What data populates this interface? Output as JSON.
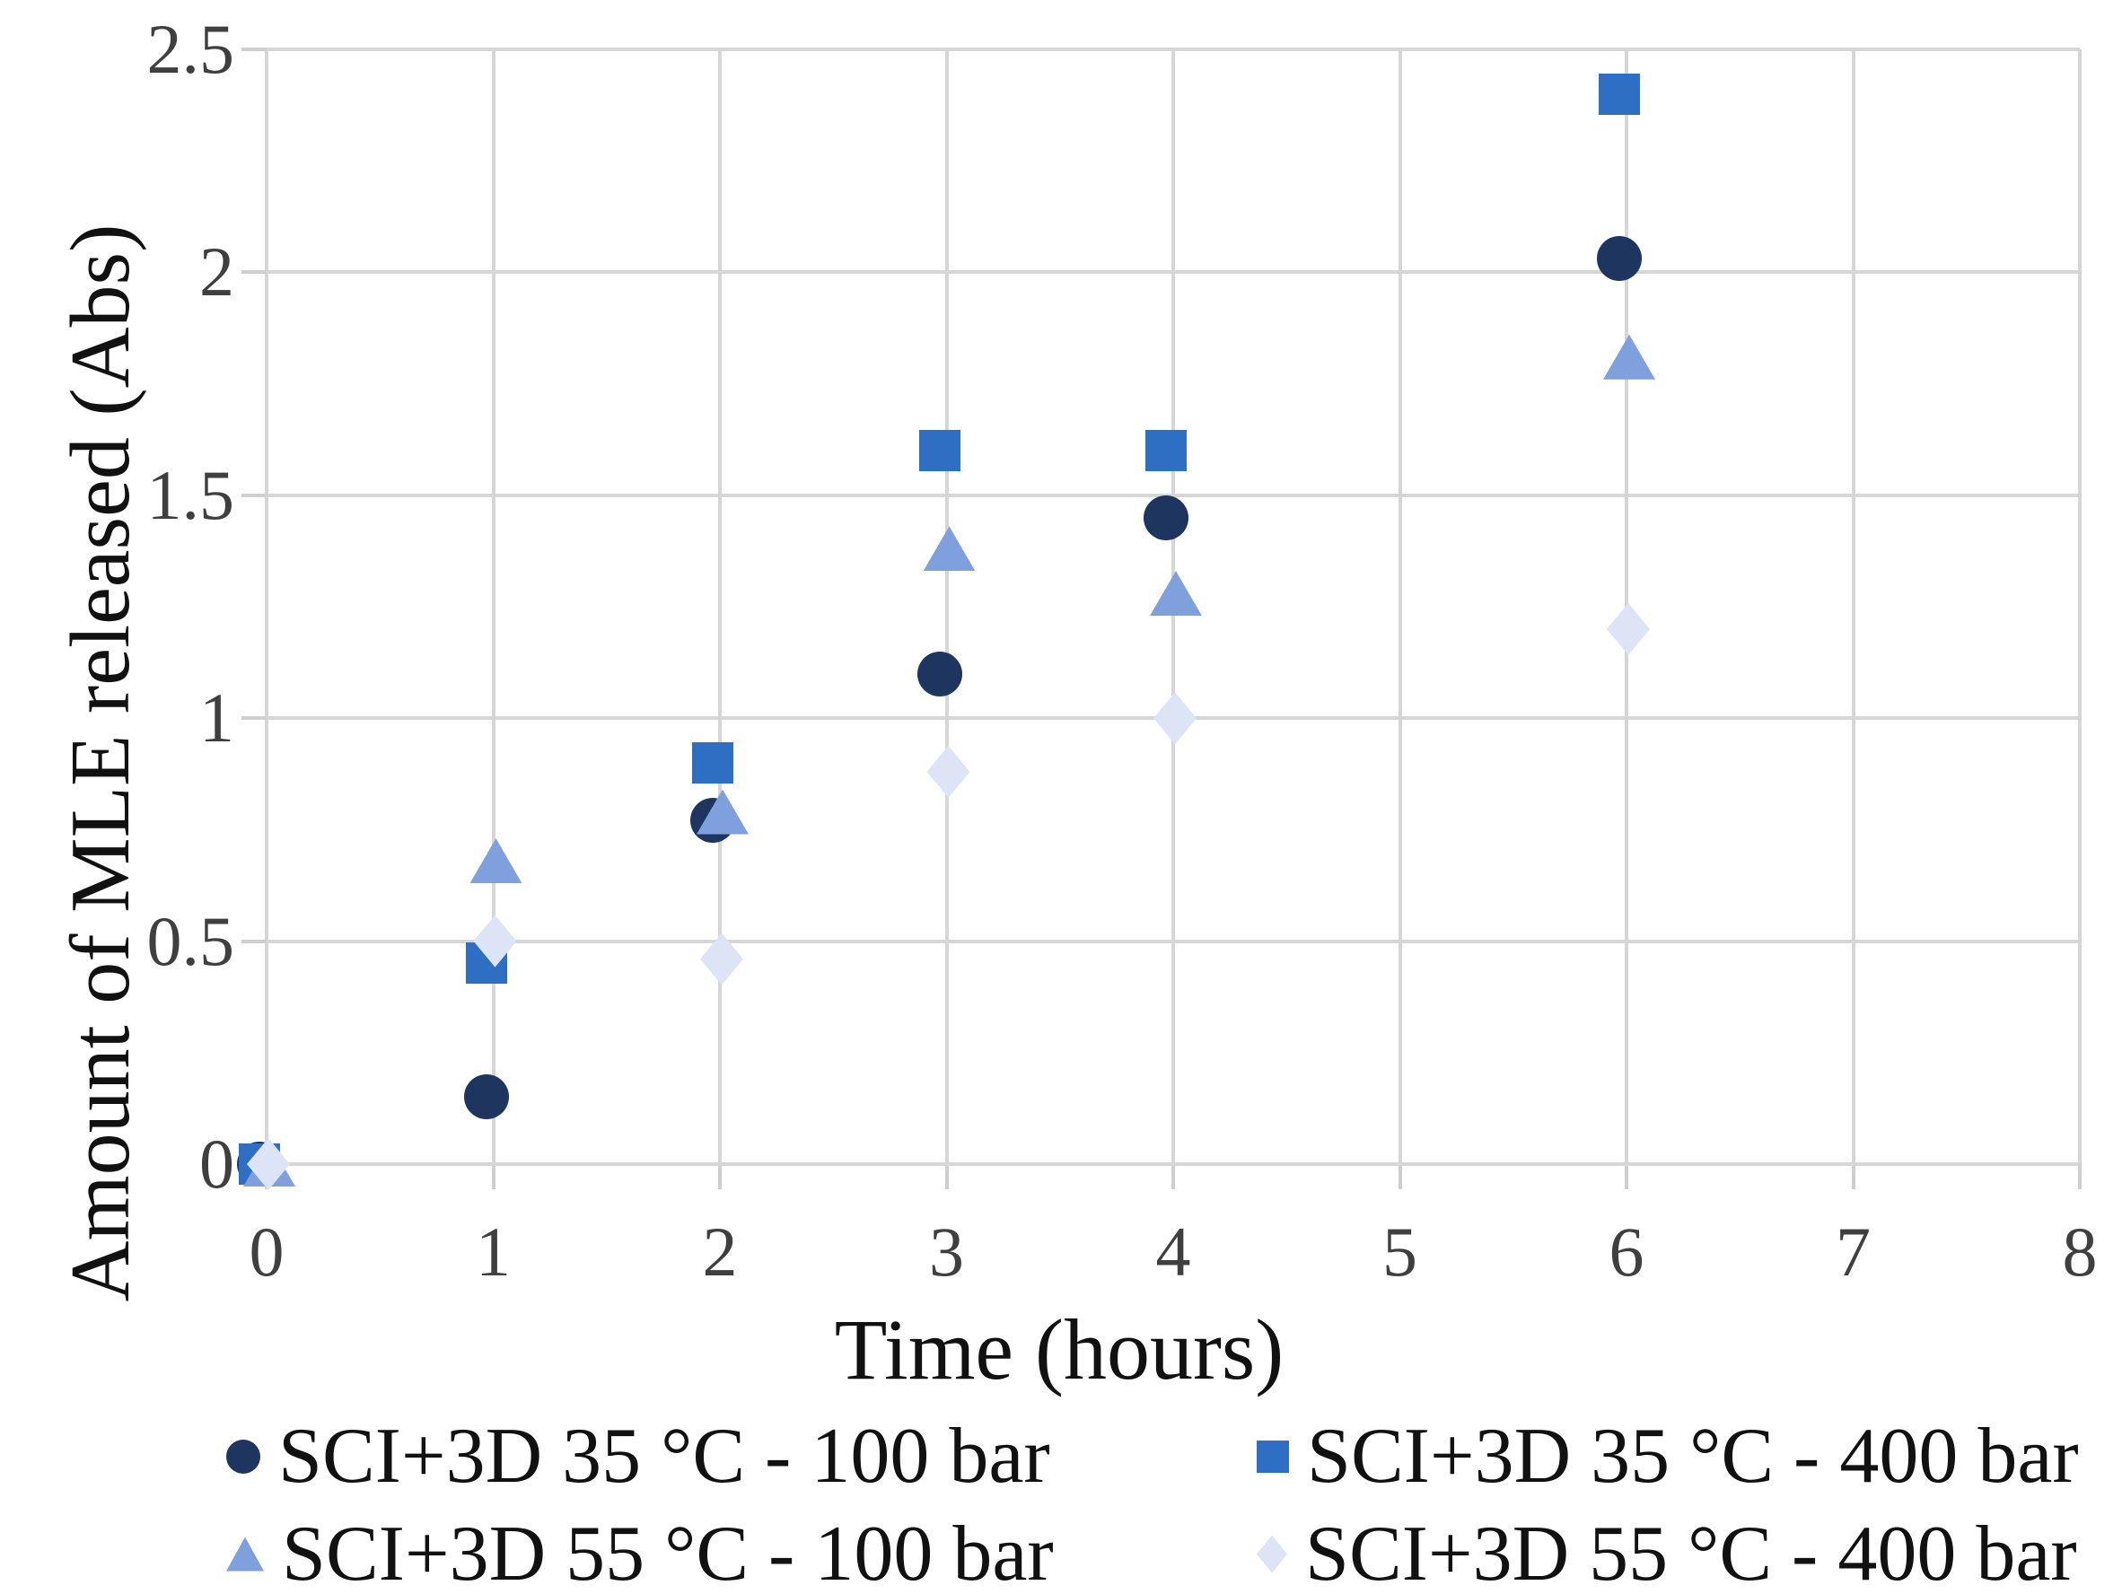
{
  "chart_data": {
    "type": "scatter",
    "title": "",
    "xlabel": "Time (hours)",
    "ylabel": "Amount of MLE released (Abs)",
    "xlim": [
      0,
      8
    ],
    "ylim": [
      0,
      2.5
    ],
    "x_ticks": [
      "0",
      "1",
      "2",
      "3",
      "4",
      "5",
      "6",
      "7",
      "8"
    ],
    "y_ticks": [
      "0",
      "0.5",
      "1",
      "1.5",
      "2",
      "2.5"
    ],
    "grid": true,
    "legend_position": "bottom",
    "series": [
      {
        "name": "SCI+3D 35 °C - 100 bar",
        "marker": "circle",
        "color": "#1e3560",
        "points": [
          [
            0,
            0
          ],
          [
            1,
            0.15
          ],
          [
            2,
            0.77
          ],
          [
            3,
            1.1
          ],
          [
            4,
            1.45
          ],
          [
            6,
            2.03
          ]
        ]
      },
      {
        "name": "SCI+3D 35 °C - 400 bar",
        "marker": "square",
        "color": "#2e6fc3",
        "points": [
          [
            0,
            0
          ],
          [
            1,
            0.45
          ],
          [
            2,
            0.9
          ],
          [
            3,
            1.6
          ],
          [
            4,
            1.6
          ],
          [
            6,
            2.4
          ]
        ]
      },
      {
        "name": "SCI+3D 55 °C - 100 bar",
        "marker": "triangle",
        "color": "#7fa0dc",
        "points": [
          [
            0,
            0
          ],
          [
            1,
            0.68
          ],
          [
            2,
            0.79
          ],
          [
            3,
            1.38
          ],
          [
            4,
            1.28
          ],
          [
            6,
            1.81
          ]
        ]
      },
      {
        "name": "SCI+3D 55 °C - 400 bar",
        "marker": "diamond",
        "color": "#dce4f5",
        "points": [
          [
            0,
            0
          ],
          [
            1,
            0.5
          ],
          [
            2,
            0.46
          ],
          [
            3,
            0.88
          ],
          [
            4,
            1.0
          ],
          [
            6,
            1.2
          ]
        ]
      }
    ]
  },
  "colors": {
    "gridline": "#d6d6d6",
    "tick_text": "#3f3f3f",
    "title_text": "#111111"
  }
}
